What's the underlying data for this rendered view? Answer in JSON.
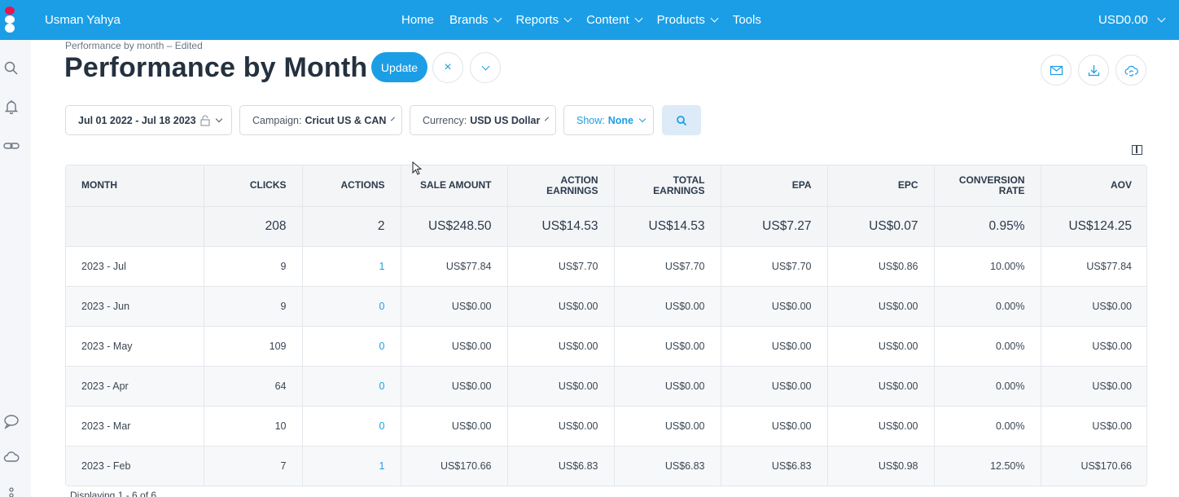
{
  "topbar": {
    "user_name": "Usman Yahya",
    "nav": [
      "Home",
      "Brands",
      "Reports",
      "Content",
      "Products",
      "Tools"
    ],
    "nav_dropdown": [
      false,
      true,
      true,
      true,
      true,
      false
    ],
    "balance": "USD0.00",
    "brand_color": "#1b9ee6"
  },
  "sidebar": {
    "icons": [
      "search-icon",
      "bell-icon",
      "link-icon",
      "chat-icon",
      "cloud-icon",
      "more-icon"
    ]
  },
  "header": {
    "breadcrumb": "Performance by month – Edited",
    "title": "Performance by Month",
    "update_label": "Update",
    "close_symbol": "×"
  },
  "filters": {
    "date_range": "Jul 01 2022 - Jul 18 2023",
    "campaign_label": "Campaign:",
    "campaign_value": "Cricut US & CAN",
    "currency_label": "Currency:",
    "currency_value": "USD US Dollar",
    "show_label": "Show:",
    "show_value": "None"
  },
  "table": {
    "columns": [
      [
        "MONTH"
      ],
      [
        "CLICKS"
      ],
      [
        "ACTIONS"
      ],
      [
        "SALE AMOUNT"
      ],
      [
        "ACTION",
        "EARNINGS"
      ],
      [
        "TOTAL",
        "EARNINGS"
      ],
      [
        "EPA"
      ],
      [
        "EPC"
      ],
      [
        "CONVERSION",
        "RATE"
      ],
      [
        "AOV"
      ]
    ],
    "totals": [
      "",
      "208",
      "2",
      "US$248.50",
      "US$14.53",
      "US$14.53",
      "US$7.27",
      "US$0.07",
      "0.95%",
      "US$124.25"
    ],
    "rows": [
      [
        "2023 - Jul",
        "9",
        "1",
        "US$77.84",
        "US$7.70",
        "US$7.70",
        "US$7.70",
        "US$0.86",
        "10.00%",
        "US$77.84"
      ],
      [
        "2023 - Jun",
        "9",
        "0",
        "US$0.00",
        "US$0.00",
        "US$0.00",
        "US$0.00",
        "US$0.00",
        "0.00%",
        "US$0.00"
      ],
      [
        "2023 - May",
        "109",
        "0",
        "US$0.00",
        "US$0.00",
        "US$0.00",
        "US$0.00",
        "US$0.00",
        "0.00%",
        "US$0.00"
      ],
      [
        "2023 - Apr",
        "64",
        "0",
        "US$0.00",
        "US$0.00",
        "US$0.00",
        "US$0.00",
        "US$0.00",
        "0.00%",
        "US$0.00"
      ],
      [
        "2023 - Mar",
        "10",
        "0",
        "US$0.00",
        "US$0.00",
        "US$0.00",
        "US$0.00",
        "US$0.00",
        "0.00%",
        "US$0.00"
      ],
      [
        "2023 - Feb",
        "7",
        "1",
        "US$170.66",
        "US$6.83",
        "US$6.83",
        "US$6.83",
        "US$0.98",
        "12.50%",
        "US$170.66"
      ]
    ]
  },
  "pager": "Displaying 1 - 6 of 6"
}
